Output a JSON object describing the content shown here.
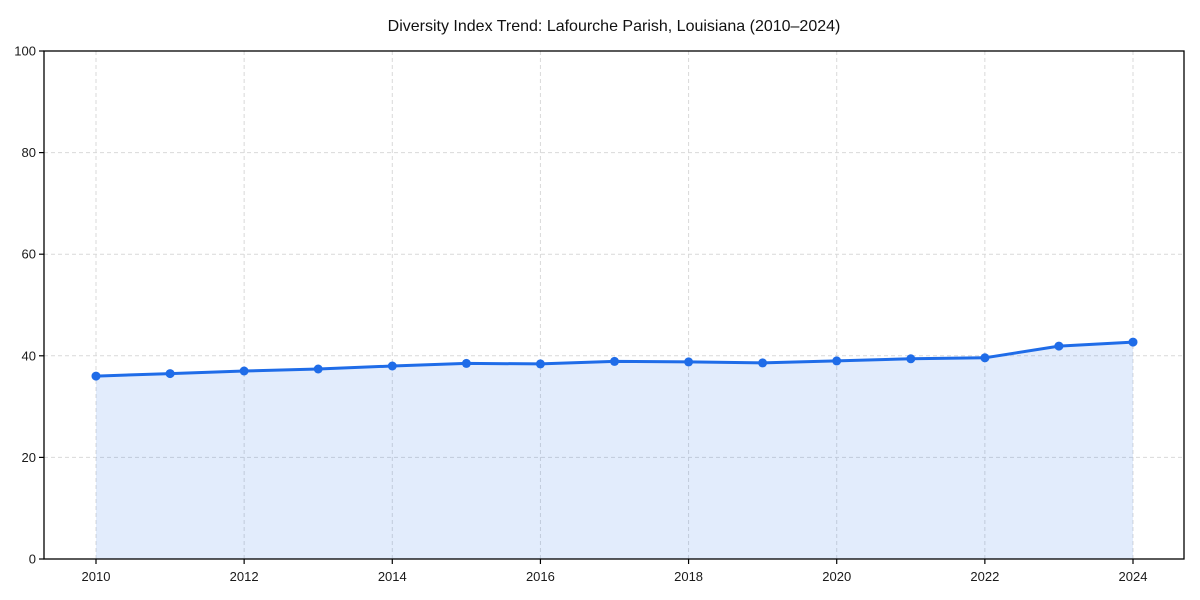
{
  "window": {
    "background_color": "#ffffff"
  },
  "chart_data": {
    "type": "area",
    "title": "Diversity Index Trend: Lafourche Parish, Louisiana (2010–2024)",
    "x": [
      2010,
      2011,
      2012,
      2013,
      2014,
      2015,
      2016,
      2017,
      2018,
      2019,
      2020,
      2021,
      2022,
      2023,
      2024
    ],
    "series": [
      {
        "name": "Diversity Index",
        "values": [
          36.0,
          36.5,
          37.0,
          37.4,
          38.0,
          38.5,
          38.4,
          38.9,
          38.8,
          38.6,
          39.0,
          39.4,
          39.6,
          41.9,
          42.7
        ]
      }
    ],
    "xlabel": "",
    "ylabel": "",
    "ylim": [
      0,
      100
    ],
    "yticks": [
      0,
      20,
      40,
      60,
      80,
      100
    ],
    "xticks": [
      2010,
      2012,
      2014,
      2016,
      2018,
      2020,
      2022,
      2024
    ],
    "grid": "dashed",
    "legend_position": "none",
    "marker": "circle",
    "colors": {
      "line": "#1f6ce8",
      "fill": "#1f6ce8",
      "fill_opacity": 0.13,
      "grid": "#d9d9d9",
      "spine": "#000000",
      "text": "#1a1a1a"
    }
  }
}
